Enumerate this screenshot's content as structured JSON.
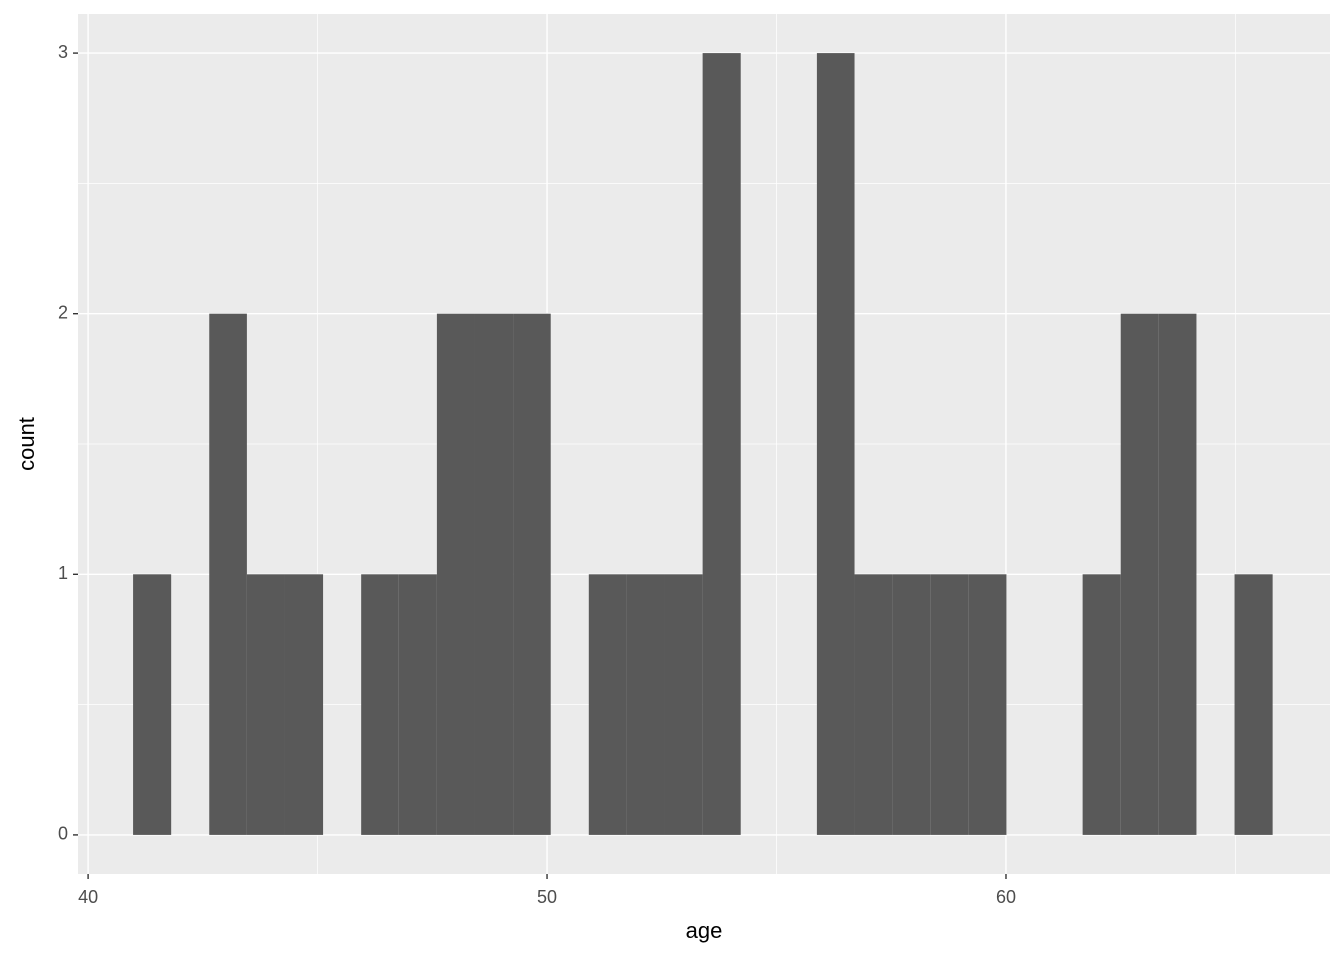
{
  "chart_data": {
    "type": "histogram",
    "x_label": "age",
    "y_label": "count",
    "bins": [
      40.98,
      41.81,
      42.64,
      43.46,
      44.29,
      45.12,
      45.95,
      46.77,
      47.6,
      48.43,
      49.26,
      50.08,
      50.91,
      51.74,
      52.57,
      53.39,
      54.22,
      55.05,
      55.88,
      56.7,
      57.53,
      58.36,
      59.19,
      60.01,
      60.84,
      61.67,
      62.5,
      63.33,
      64.15,
      64.98,
      65.81
    ],
    "values": [
      1,
      0,
      2,
      1,
      1,
      0,
      1,
      1,
      2,
      2,
      2,
      0,
      1,
      1,
      1,
      3,
      0,
      0,
      3,
      1,
      1,
      1,
      1,
      0,
      0,
      1,
      2,
      2,
      0,
      1
    ],
    "color": "#595959",
    "xlim": [
      39.78,
      67.06
    ],
    "ylim": [
      -0.15,
      3.15
    ],
    "xticks": [
      40,
      50,
      60
    ],
    "yticks": [
      0,
      1,
      2,
      3
    ],
    "xminor": [
      45,
      55,
      65
    ],
    "yminor": [
      0.5,
      1.5,
      2.5
    ],
    "grid": true
  }
}
